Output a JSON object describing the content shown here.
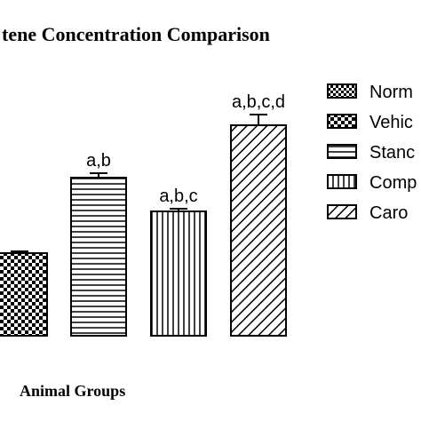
{
  "chart_data": {
    "type": "bar",
    "title": "tene Concentration Comparison",
    "x_label": "Animal Groups",
    "categories": [
      null,
      null,
      null,
      null
    ],
    "values": [
      93,
      178,
      140,
      237
    ],
    "errors": [
      2,
      5,
      3,
      12
    ],
    "patterns": [
      "checker-large",
      "hlines",
      "vlines",
      "diag"
    ],
    "annotations": [
      null,
      "a,b",
      "a,b,c",
      "a,b,c,d"
    ],
    "legend": [
      {
        "name": "Norm",
        "pattern": "checker-small"
      },
      {
        "name": "Vehic",
        "pattern": "checker-large"
      },
      {
        "name": "Stanc",
        "pattern": "hlines"
      },
      {
        "name": "Comp",
        "pattern": "vlines"
      },
      {
        "name": "Caro",
        "pattern": "diag"
      }
    ]
  }
}
